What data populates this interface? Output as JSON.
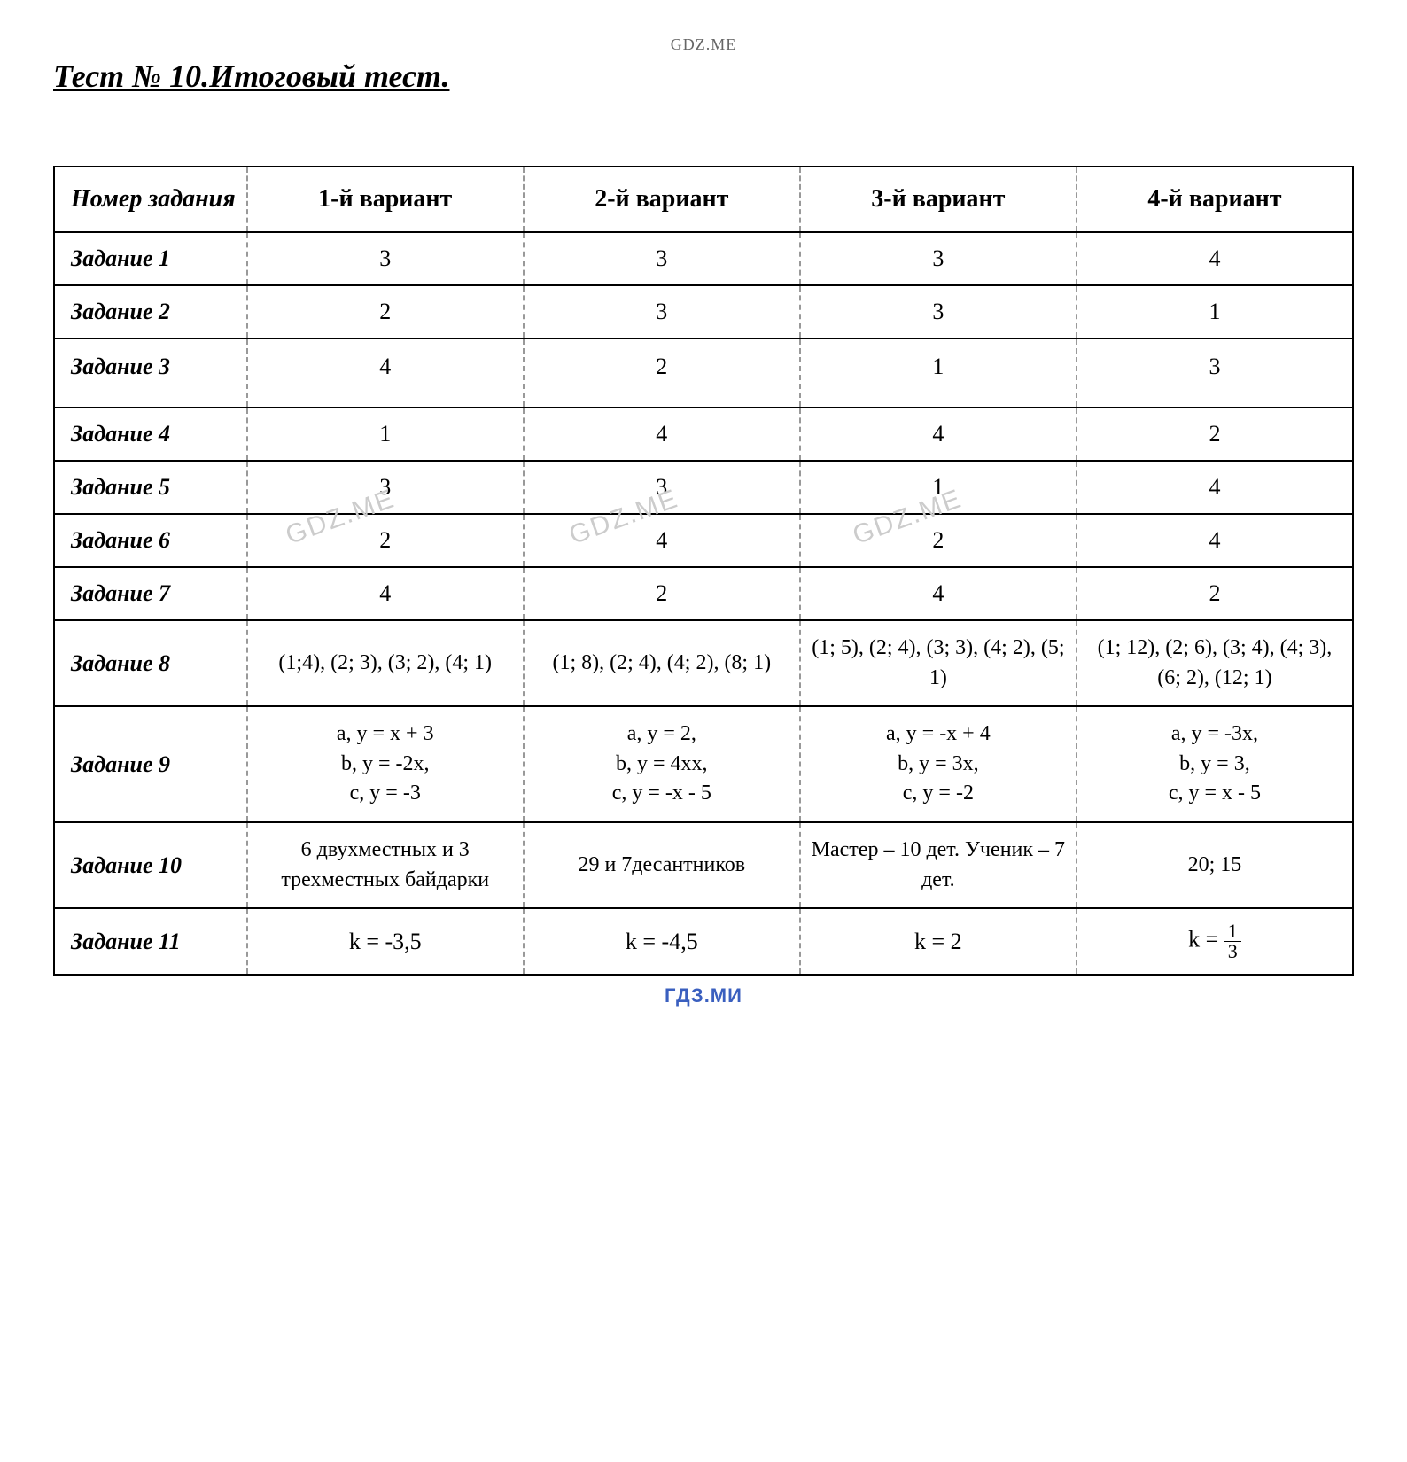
{
  "watermark_top": "GDZ.ME",
  "title": "Тест № 10.Итоговый тест.",
  "footer_watermark": "ГДЗ.МИ",
  "gdz_wm": "GDZ.ME",
  "table": {
    "headers": [
      "Номер задания",
      "1-й вариант",
      "2-й вариант",
      "3-й вариант",
      "4-й вариант"
    ],
    "rows": [
      {
        "label": "Задание 1",
        "cells": [
          "3",
          "3",
          "3",
          "4"
        ]
      },
      {
        "label": "Задание 2",
        "cells": [
          "2",
          "3",
          "3",
          "1"
        ]
      },
      {
        "label": "Задание 3",
        "cells": [
          "4",
          "2",
          "1",
          "3"
        ]
      },
      {
        "label": "Задание 4",
        "cells": [
          "1",
          "4",
          "4",
          "2"
        ]
      },
      {
        "label": "Задание 5",
        "cells": [
          "3",
          "3",
          "1",
          "4"
        ]
      },
      {
        "label": "Задание 6",
        "cells": [
          "2",
          "4",
          "2",
          "4"
        ]
      },
      {
        "label": "Задание 7",
        "cells": [
          "4",
          "2",
          "4",
          "2"
        ]
      },
      {
        "label": "Задание 8",
        "cells": [
          "(1;4), (2; 3), (3; 2), (4; 1)",
          "(1; 8), (2; 4), (4; 2), (8; 1)",
          "(1; 5), (2; 4), (3; 3), (4; 2), (5; 1)",
          "(1; 12), (2; 6), (3; 4), (4; 3), (6; 2), (12; 1)"
        ],
        "multiline": true
      },
      {
        "label": "Задание 9",
        "cells": [
          "a, y = x + 3\nb, y = -2x,\nc, y = -3",
          "a, y = 2,\nb, y = 4xx,\nc, y = -x - 5",
          "a, y = -x + 4\nb, y = 3x,\nc, y = -2",
          "a, y = -3x,\nb, y = 3,\nc, y = x - 5"
        ],
        "multiline": true
      },
      {
        "label": "Задание 10",
        "cells": [
          "6 двухместных и 3 трехместных байдарки",
          "29 и 7десантников",
          "Мастер – 10 дет. Ученик – 7 дет.",
          "20; 15"
        ],
        "multiline": true
      },
      {
        "label": "Задание 11",
        "cells": [
          "k = -3,5",
          "k = -4,5",
          "k = 2",
          "k = {FRAC:1:3}"
        ]
      }
    ]
  },
  "styling": {
    "font_family": "Times New Roman",
    "title_fontsize": 36,
    "header_fontsize": 28,
    "cell_fontsize": 26,
    "multiline_fontsize": 24,
    "border_solid_color": "#000000",
    "border_dashed_color": "#999999",
    "background_color": "#ffffff",
    "watermark_color": "#cccccc",
    "footer_color": "#3a5fbf"
  }
}
